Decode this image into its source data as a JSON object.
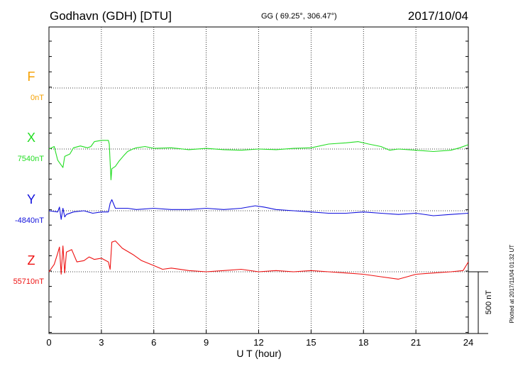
{
  "header": {
    "station": "Godhavn (GDH)  [DTU]",
    "coords": "GG ( 69.25°, 306.47°)",
    "date": "2017/10/04"
  },
  "side_note": "Plotted at 2017/11/04 01:32 UT",
  "chart_data": {
    "type": "line",
    "title": "Godhavn (GDH)  [DTU]",
    "xlabel": "U T (hour)",
    "xlim": [
      0,
      24
    ],
    "xticks": [
      0,
      3,
      6,
      9,
      12,
      15,
      18,
      21,
      24
    ],
    "grid": true,
    "scale_bar": {
      "label": "500 nT",
      "value_nT": 500
    },
    "series": [
      {
        "name": "F",
        "baseline_label": "0nT",
        "color": "#f5a000",
        "baseline_nT": 0,
        "points": []
      },
      {
        "name": "X",
        "baseline_label": "7540nT",
        "color": "#22dd22",
        "baseline_nT": 7540,
        "points": [
          [
            0.0,
            0
          ],
          [
            0.3,
            20
          ],
          [
            0.5,
            -90
          ],
          [
            0.65,
            -120
          ],
          [
            0.8,
            -150
          ],
          [
            0.9,
            -60
          ],
          [
            1.2,
            -40
          ],
          [
            1.4,
            10
          ],
          [
            1.8,
            25
          ],
          [
            2.2,
            10
          ],
          [
            2.4,
            20
          ],
          [
            2.6,
            60
          ],
          [
            3.0,
            70
          ],
          [
            3.4,
            70
          ],
          [
            3.45,
            40
          ],
          [
            3.55,
            -250
          ],
          [
            3.6,
            -160
          ],
          [
            3.8,
            -140
          ],
          [
            4.0,
            -100
          ],
          [
            4.3,
            -50
          ],
          [
            4.5,
            -20
          ],
          [
            4.8,
            0
          ],
          [
            5.0,
            10
          ],
          [
            5.5,
            20
          ],
          [
            6.0,
            5
          ],
          [
            7.0,
            10
          ],
          [
            8.0,
            -5
          ],
          [
            9.0,
            5
          ],
          [
            10.0,
            -5
          ],
          [
            11.0,
            -10
          ],
          [
            12.0,
            0
          ],
          [
            13.0,
            -5
          ],
          [
            14.0,
            5
          ],
          [
            15.0,
            10
          ],
          [
            16.0,
            40
          ],
          [
            17.0,
            50
          ],
          [
            17.7,
            60
          ],
          [
            18.3,
            40
          ],
          [
            19.0,
            20
          ],
          [
            19.5,
            -10
          ],
          [
            20.0,
            0
          ],
          [
            21.0,
            -10
          ],
          [
            22.0,
            -20
          ],
          [
            23.0,
            -10
          ],
          [
            23.5,
            10
          ],
          [
            24.0,
            35
          ]
        ]
      },
      {
        "name": "Y",
        "baseline_label": "-4840nT",
        "color": "#1010dd",
        "baseline_nT": -4840,
        "points": [
          [
            0.0,
            0
          ],
          [
            0.5,
            -10
          ],
          [
            0.6,
            30
          ],
          [
            0.7,
            -70
          ],
          [
            0.8,
            20
          ],
          [
            0.9,
            -50
          ],
          [
            1.0,
            -30
          ],
          [
            1.4,
            -10
          ],
          [
            2.0,
            0
          ],
          [
            2.5,
            -20
          ],
          [
            3.0,
            -10
          ],
          [
            3.4,
            -10
          ],
          [
            3.5,
            60
          ],
          [
            3.6,
            90
          ],
          [
            3.8,
            20
          ],
          [
            4.5,
            20
          ],
          [
            5.0,
            10
          ],
          [
            6.0,
            20
          ],
          [
            7.0,
            10
          ],
          [
            8.0,
            10
          ],
          [
            9.0,
            20
          ],
          [
            10.0,
            10
          ],
          [
            11.0,
            20
          ],
          [
            11.8,
            40
          ],
          [
            12.3,
            30
          ],
          [
            13.0,
            10
          ],
          [
            14.0,
            0
          ],
          [
            15.0,
            -10
          ],
          [
            16.0,
            -20
          ],
          [
            17.0,
            -20
          ],
          [
            18.0,
            -10
          ],
          [
            19.0,
            -20
          ],
          [
            20.0,
            -30
          ],
          [
            21.0,
            -20
          ],
          [
            22.0,
            -40
          ],
          [
            23.0,
            -30
          ],
          [
            24.0,
            -20
          ]
        ]
      },
      {
        "name": "Z",
        "baseline_label": "55710nT",
        "color": "#ee1111",
        "baseline_nT": 55710,
        "points": [
          [
            0.0,
            0
          ],
          [
            0.3,
            60
          ],
          [
            0.5,
            150
          ],
          [
            0.6,
            200
          ],
          [
            0.7,
            -20
          ],
          [
            0.8,
            210
          ],
          [
            0.9,
            -10
          ],
          [
            1.0,
            160
          ],
          [
            1.3,
            180
          ],
          [
            1.6,
            80
          ],
          [
            2.0,
            90
          ],
          [
            2.3,
            120
          ],
          [
            2.6,
            100
          ],
          [
            3.0,
            110
          ],
          [
            3.4,
            80
          ],
          [
            3.5,
            20
          ],
          [
            3.6,
            240
          ],
          [
            3.8,
            250
          ],
          [
            4.2,
            190
          ],
          [
            4.8,
            140
          ],
          [
            5.3,
            90
          ],
          [
            6.0,
            50
          ],
          [
            6.5,
            20
          ],
          [
            7.0,
            30
          ],
          [
            8.0,
            10
          ],
          [
            9.0,
            0
          ],
          [
            10.0,
            10
          ],
          [
            11.0,
            20
          ],
          [
            12.0,
            0
          ],
          [
            13.0,
            10
          ],
          [
            14.0,
            0
          ],
          [
            15.0,
            10
          ],
          [
            16.0,
            0
          ],
          [
            17.0,
            -10
          ],
          [
            18.0,
            -20
          ],
          [
            19.0,
            -40
          ],
          [
            20.0,
            -60
          ],
          [
            20.5,
            -40
          ],
          [
            21.0,
            -20
          ],
          [
            22.0,
            -10
          ],
          [
            23.0,
            0
          ],
          [
            23.7,
            10
          ],
          [
            24.0,
            80
          ]
        ]
      }
    ]
  }
}
